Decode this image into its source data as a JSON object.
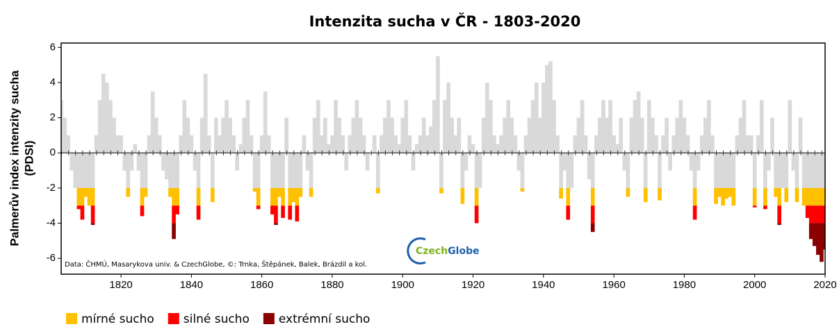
{
  "chart_data": {
    "type": "bar",
    "title": "Intenzita sucha v ČR - 1803-2020",
    "y_label": [
      "Palmerův index intenzity sucha",
      "(PDSI)"
    ],
    "source_note": "Data: ČHMÚ, Masarykova univ. & CzechGlobe, ©: Trnka, Štěpánek, Balek, Brázdil a kol.",
    "logo_parts": [
      "Czech",
      "Globe"
    ],
    "color": "#d9d9d9",
    "bands": [
      {
        "name": "mírné sucho",
        "color": "#ffc000",
        "from": -2,
        "to": -3
      },
      {
        "name": "silné sucho",
        "color": "#ff0000",
        "from": -3,
        "to": -4
      },
      {
        "name": "extrémní sucho",
        "color": "#8b0000",
        "from": -4,
        "to": null
      }
    ],
    "x": [
      1803,
      1804,
      1805,
      1806,
      1807,
      1808,
      1809,
      1810,
      1811,
      1812,
      1813,
      1814,
      1815,
      1816,
      1817,
      1818,
      1819,
      1820,
      1821,
      1822,
      1823,
      1824,
      1825,
      1826,
      1827,
      1828,
      1829,
      1830,
      1831,
      1832,
      1833,
      1834,
      1835,
      1836,
      1837,
      1838,
      1839,
      1840,
      1841,
      1842,
      1843,
      1844,
      1845,
      1846,
      1847,
      1848,
      1849,
      1850,
      1851,
      1852,
      1853,
      1854,
      1855,
      1856,
      1857,
      1858,
      1859,
      1860,
      1861,
      1862,
      1863,
      1864,
      1865,
      1866,
      1867,
      1868,
      1869,
      1870,
      1871,
      1872,
      1873,
      1874,
      1875,
      1876,
      1877,
      1878,
      1879,
      1880,
      1881,
      1882,
      1883,
      1884,
      1885,
      1886,
      1887,
      1888,
      1889,
      1890,
      1891,
      1892,
      1893,
      1894,
      1895,
      1896,
      1897,
      1898,
      1899,
      1900,
      1901,
      1902,
      1903,
      1904,
      1905,
      1906,
      1907,
      1908,
      1909,
      1910,
      1911,
      1912,
      1913,
      1914,
      1915,
      1916,
      1917,
      1918,
      1919,
      1920,
      1921,
      1922,
      1923,
      1924,
      1925,
      1926,
      1927,
      1928,
      1929,
      1930,
      1931,
      1932,
      1933,
      1934,
      1935,
      1936,
      1937,
      1938,
      1939,
      1940,
      1941,
      1942,
      1943,
      1944,
      1945,
      1946,
      1947,
      1948,
      1949,
      1950,
      1951,
      1952,
      1953,
      1954,
      1955,
      1956,
      1957,
      1958,
      1959,
      1960,
      1961,
      1962,
      1963,
      1964,
      1965,
      1966,
      1967,
      1968,
      1969,
      1970,
      1971,
      1972,
      1973,
      1974,
      1975,
      1976,
      1977,
      1978,
      1979,
      1980,
      1981,
      1982,
      1983,
      1984,
      1985,
      1986,
      1987,
      1988,
      1989,
      1990,
      1991,
      1992,
      1993,
      1994,
      1995,
      1996,
      1997,
      1998,
      1999,
      2000,
      2001,
      2002,
      2003,
      2004,
      2005,
      2006,
      2007,
      2008,
      2009,
      2010,
      2011,
      2012,
      2013,
      2014,
      2015,
      2016,
      2017,
      2018,
      2019,
      2020
    ],
    "values": [
      3,
      2,
      1,
      -1,
      -2,
      -3.2,
      -3.8,
      -2.5,
      -3,
      -4.1,
      1,
      3,
      4.5,
      4,
      3,
      2,
      1,
      1,
      -1,
      -2.5,
      -1,
      0.5,
      -1,
      -3.6,
      -2.5,
      1,
      3.5,
      2,
      1,
      -1,
      -1.5,
      -2.5,
      -4.9,
      -3.5,
      1,
      3,
      2,
      1,
      -1,
      -3.8,
      2,
      4.5,
      1,
      -2.8,
      2,
      1,
      2,
      3,
      2,
      1,
      -1,
      0.5,
      2,
      3,
      1,
      -2.2,
      -3.2,
      1,
      3.5,
      1,
      -3.5,
      -4.1,
      -2.5,
      -3.7,
      2,
      -3.8,
      -2.8,
      -3.9,
      -2.5,
      1,
      -1,
      -2.5,
      2,
      3,
      1,
      2,
      0.5,
      1,
      3,
      2,
      1,
      -1,
      1,
      2,
      3,
      2,
      1,
      -1,
      0,
      1,
      -2.3,
      1,
      2,
      3,
      2,
      1,
      0.5,
      2,
      3,
      1,
      -1,
      0.5,
      1,
      2,
      1,
      1.5,
      3,
      5.5,
      -2.3,
      3,
      4,
      2,
      1,
      2,
      -2.9,
      -1,
      1,
      0.5,
      -4,
      -2,
      2,
      4,
      3,
      1,
      0.5,
      1,
      2,
      3,
      2,
      1,
      -1,
      -2.2,
      1,
      2,
      3,
      4,
      2,
      4,
      5,
      5.2,
      3,
      1,
      -2.6,
      -1,
      -3.8,
      -2,
      1,
      2,
      3,
      1,
      -1.5,
      -4.5,
      1,
      2,
      3,
      2,
      3,
      1,
      0.5,
      2,
      -1,
      -2.5,
      2,
      3,
      3.5,
      2,
      -2.8,
      3,
      2,
      1,
      -2.7,
      1,
      2,
      -1,
      1,
      2,
      3,
      2,
      1,
      -1,
      -3.8,
      -1,
      1,
      2,
      3,
      1,
      -2.9,
      -2.5,
      -3,
      -2.6,
      -2.5,
      -3,
      1,
      2,
      3,
      1,
      1,
      -3.1,
      1,
      3,
      -3.2,
      -1,
      2,
      -2.5,
      -4.1,
      -2,
      -2.8,
      3,
      -1,
      -2.8,
      2,
      -3,
      -3.7,
      -4.9,
      -5.3,
      -5.8,
      -6.2,
      -5.5
    ],
    "xlim": [
      1803,
      2020
    ],
    "xticks": [
      1820,
      1840,
      1860,
      1880,
      1900,
      1920,
      1940,
      1960,
      1980,
      2000,
      2020
    ],
    "ylim": [
      -6.9,
      6.25
    ],
    "yticks": [
      -6,
      -4,
      -2,
      0,
      2,
      4,
      6
    ]
  }
}
